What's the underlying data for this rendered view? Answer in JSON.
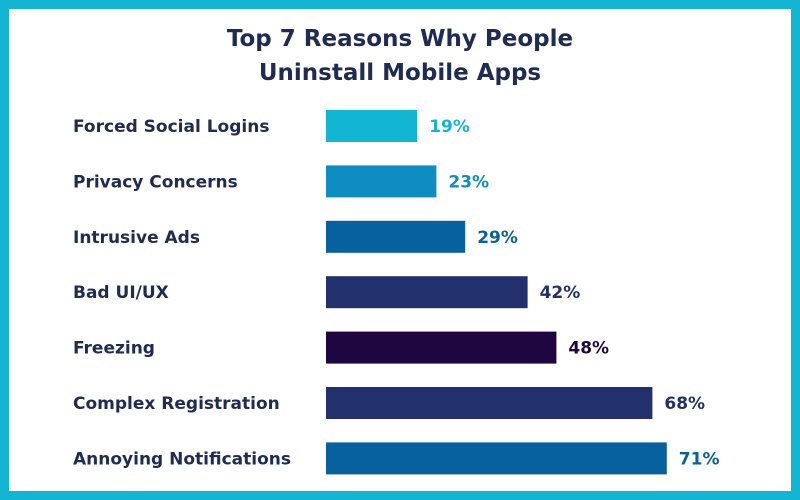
{
  "chart_data": {
    "type": "bar",
    "orientation": "horizontal",
    "title_lines": [
      "Top 7 Reasons Why People",
      "Uninstall Mobile Apps"
    ],
    "categories": [
      "Forced Social Logins",
      "Privacy Concerns",
      "Intrusive Ads",
      "Bad UI/UX",
      "Freezing",
      "Complex Registration",
      "Annoying Notifications"
    ],
    "values": [
      19,
      23,
      29,
      42,
      48,
      68,
      71
    ],
    "value_labels": [
      "19%",
      "23%",
      "29%",
      "42%",
      "48%",
      "68%",
      "71%"
    ],
    "colors": [
      "#12b6d2",
      "#0e8ec0",
      "#07619e",
      "#22306e",
      "#1e0640",
      "#22306e",
      "#07619e"
    ],
    "xlim": [
      0,
      100
    ],
    "grid": false,
    "legend": "none"
  },
  "theme": {
    "frame_color": "#12b6d2",
    "text_color": "#1e2b52"
  }
}
